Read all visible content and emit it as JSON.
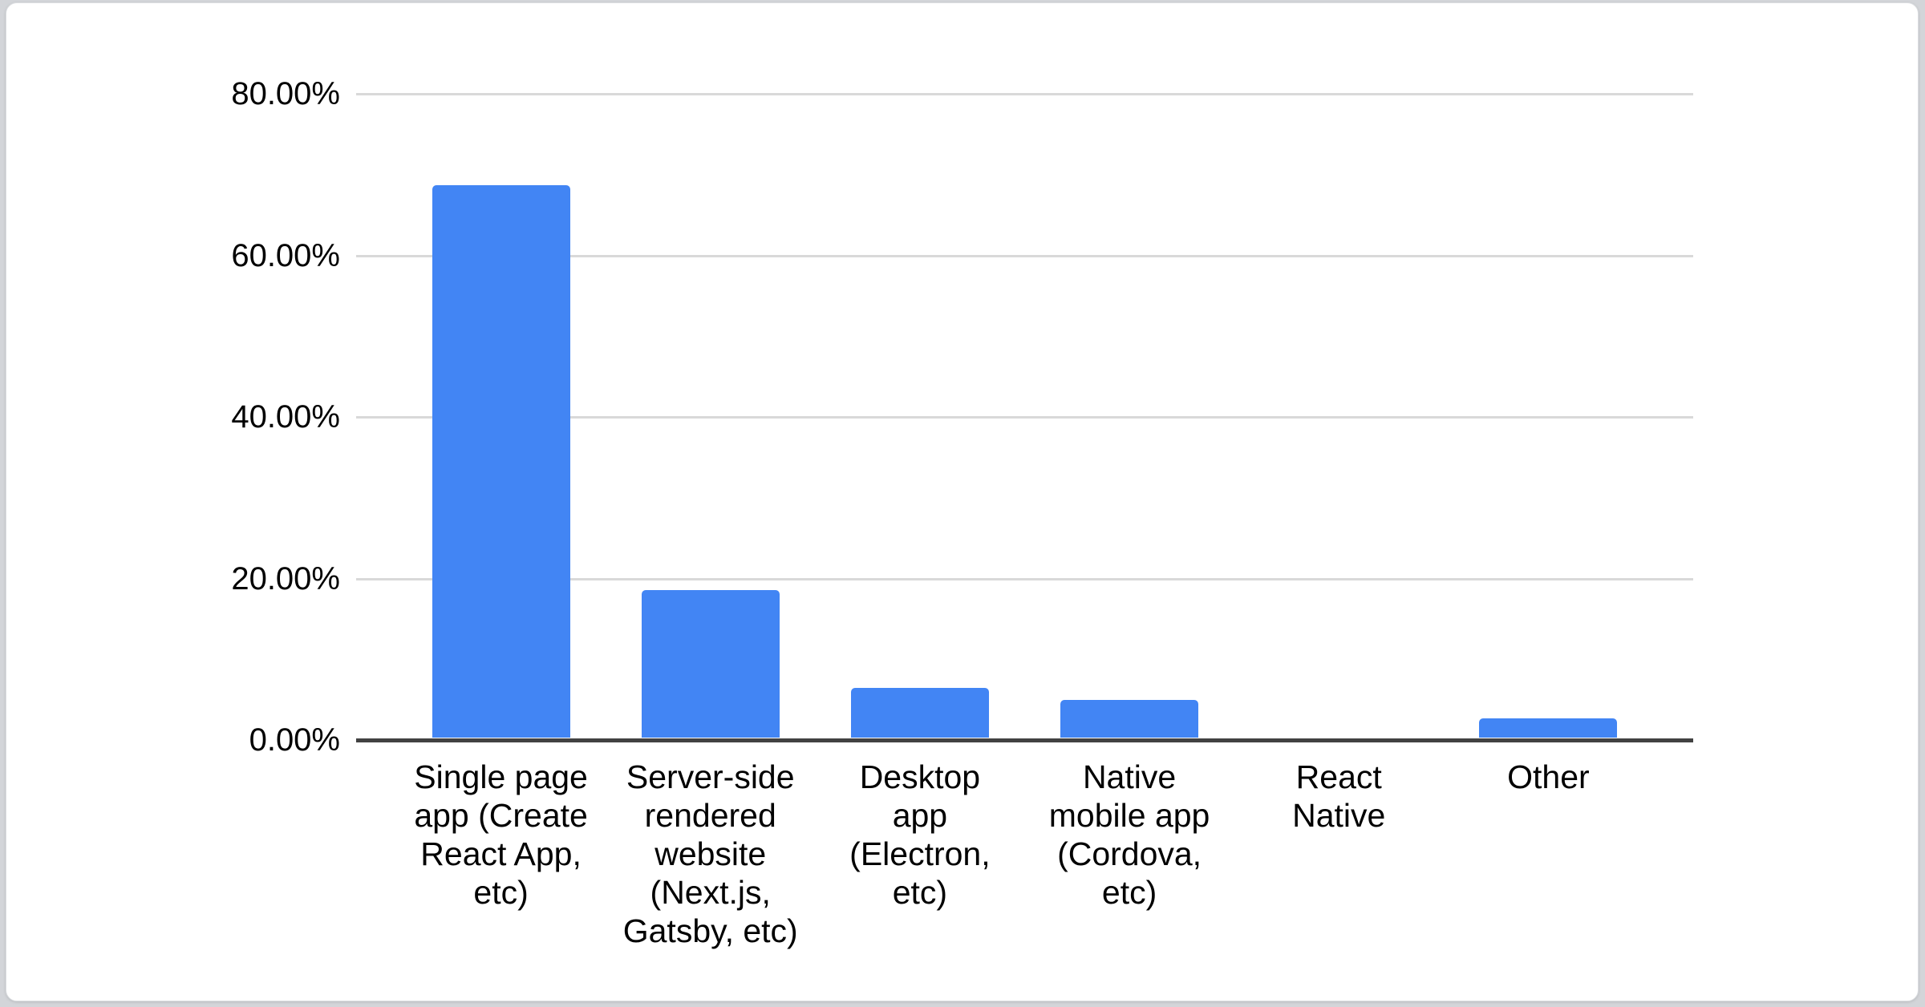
{
  "page": {
    "background_color": "#d3d5d9",
    "card_background": "#ffffff"
  },
  "chart_data": {
    "type": "bar",
    "title": "",
    "xlabel": "",
    "ylabel": "",
    "ylim": [
      0,
      80
    ],
    "grid": true,
    "legend_position": "none",
    "bar_color": "#4285f4",
    "gridline_color": "#d9d9d9",
    "axis_line_color": "#424242",
    "categories": [
      "Single page app (Create React App, etc)",
      "Server-side rendered website (Next.js, Gatsby, etc)",
      "Desktop app (Electron, etc)",
      "Native mobile app (Cordova, etc)",
      "React Native",
      "Other"
    ],
    "category_ids": [
      "single-page-app",
      "server-side-rendered-website",
      "desktop-app",
      "native-mobile-app",
      "react-native",
      "other"
    ],
    "category_display_lines": [
      [
        "Single page",
        "app (Create",
        "React App,",
        "etc)"
      ],
      [
        "Server-side",
        "rendered",
        "website",
        "(Next.js,",
        "Gatsby, etc)"
      ],
      [
        "Desktop",
        "app",
        "(Electron,",
        "etc)"
      ],
      [
        "Native",
        "mobile app",
        "(Cordova,",
        "etc)"
      ],
      [
        "React",
        "Native"
      ],
      [
        "Other"
      ]
    ],
    "values": [
      68.4,
      18.3,
      6.2,
      4.7,
      0,
      2.4
    ],
    "y_ticks": [
      {
        "value": 80,
        "label": "80.00%"
      },
      {
        "value": 60,
        "label": "60.00%"
      },
      {
        "value": 40,
        "label": "40.00%"
      },
      {
        "value": 20,
        "label": "20.00%"
      },
      {
        "value": 0,
        "label": "0.00%"
      }
    ]
  }
}
